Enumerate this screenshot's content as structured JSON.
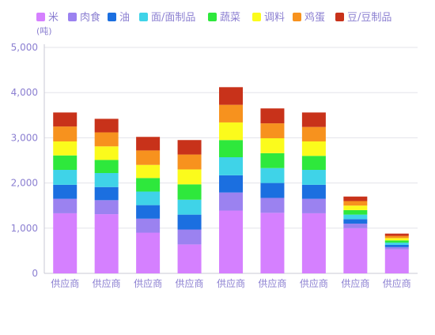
{
  "chart_data": {
    "type": "bar",
    "stacked": true,
    "unit_label": "(吨)",
    "title": "",
    "xlabel": "",
    "ylabel": "",
    "ylim": [
      0,
      5000
    ],
    "yticks": [
      0,
      1000,
      2000,
      3000,
      4000,
      5000
    ],
    "ytick_labels": [
      "0",
      "1,000",
      "2,000",
      "3,000",
      "4,000",
      "5,000"
    ],
    "grid": true,
    "legend_position": "top",
    "categories": [
      "供应商",
      "供应商",
      "供应商",
      "供应商",
      "供应商",
      "供应商",
      "供应商",
      "供应商",
      "供应商"
    ],
    "series": [
      {
        "name": "米",
        "color": "#d580ff",
        "values": [
          1330,
          1310,
          900,
          640,
          1390,
          1340,
          1330,
          1000,
          530
        ]
      },
      {
        "name": "肉食",
        "color": "#9b82f0",
        "values": [
          320,
          310,
          310,
          330,
          400,
          330,
          320,
          100,
          50
        ]
      },
      {
        "name": "油",
        "color": "#1b6fe0",
        "values": [
          310,
          290,
          300,
          330,
          380,
          330,
          310,
          100,
          50
        ]
      },
      {
        "name": "面/面制品",
        "color": "#3fd3e8",
        "values": [
          330,
          310,
          300,
          330,
          400,
          330,
          330,
          100,
          50
        ]
      },
      {
        "name": "蔬菜",
        "color": "#2ee83c",
        "values": [
          320,
          290,
          300,
          340,
          380,
          330,
          310,
          100,
          50
        ]
      },
      {
        "name": "调料",
        "color": "#fbfb1c",
        "values": [
          310,
          300,
          290,
          330,
          390,
          330,
          320,
          100,
          50
        ]
      },
      {
        "name": "鸡蛋",
        "color": "#f7921e",
        "values": [
          330,
          310,
          320,
          330,
          390,
          330,
          320,
          100,
          50
        ]
      },
      {
        "name": "豆/豆制品",
        "color": "#c8321a",
        "values": [
          310,
          300,
          300,
          320,
          390,
          330,
          320,
          100,
          50
        ]
      }
    ]
  }
}
